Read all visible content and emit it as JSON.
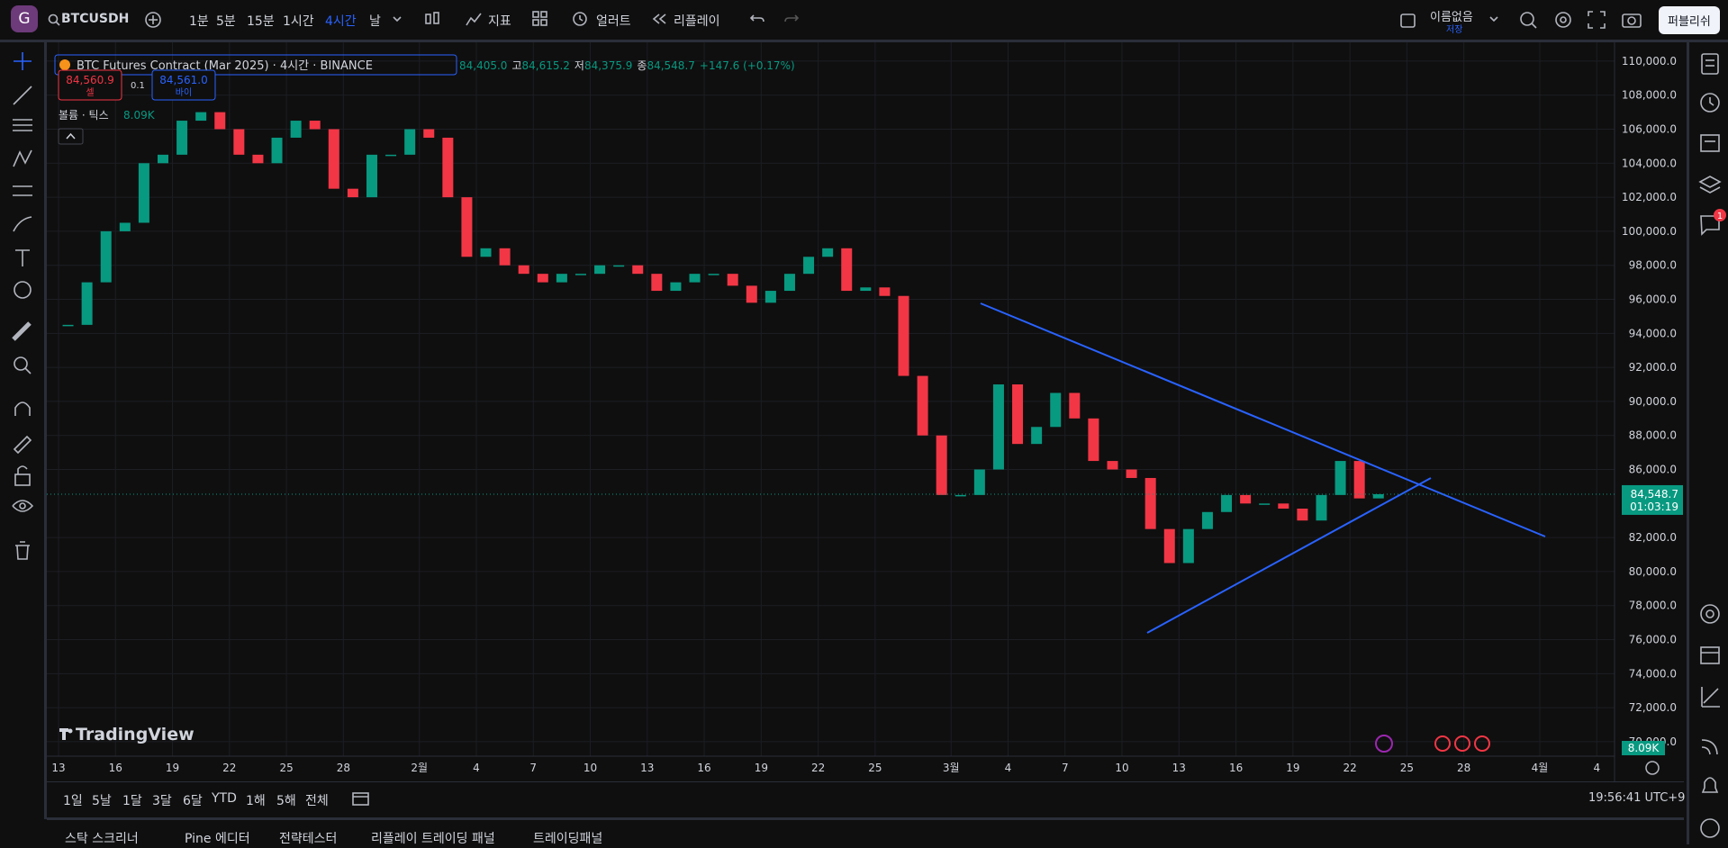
{
  "toolbar": {
    "avatar": "G",
    "symbol": "BTCUSDH",
    "intervals": [
      "1분",
      "5분",
      "15분",
      "1시간",
      "4시간",
      "날"
    ],
    "indicators": "지표",
    "alert": "얼러트",
    "replay": "리플레이",
    "layout_name": "이름없음",
    "save": "저장",
    "publish": "퍼블리쉬"
  },
  "legend": {
    "title": "BTC Futures Contract (Mar 2025) · 4시간 · BINANCE",
    "open": "84,405.0",
    "ohlc": [
      {
        "label": "고",
        "value": "84,615.2"
      },
      {
        "label": "저",
        "value": "84,375.9"
      },
      {
        "label": "종",
        "value": "84,548.7"
      }
    ],
    "change": "+147.6 (+0.17%)",
    "sell_price": "84,560.9",
    "sell": "셀",
    "spread": "0.1",
    "buy_price": "84,561.0",
    "buy": "바이",
    "volume_title": "볼륨 · 틱스",
    "volume_value": "8.09K"
  },
  "chart_data": {
    "type": "candlestick",
    "closes": [
      94500,
      97000,
      100000,
      100500,
      104000,
      104500,
      106500,
      107000,
      106000,
      104500,
      104000,
      105500,
      106500,
      106000,
      102500,
      102000,
      104500,
      104500,
      106000,
      105500,
      102000,
      98500,
      99000,
      98000,
      97500,
      97000,
      97500,
      97500,
      98000,
      98000,
      97500,
      96500,
      97000,
      97500,
      97500,
      96800,
      95800,
      96500,
      97500,
      98500,
      99000,
      96500,
      96700,
      96200,
      91500,
      88000,
      84500,
      84500,
      86000,
      91000,
      87500,
      88500,
      90500,
      89000,
      86500,
      86000,
      85500,
      82500,
      80500,
      82500,
      83500,
      84500,
      84000,
      84000,
      83700,
      83000,
      84500,
      86500,
      84300,
      84548.7
    ],
    "up_color": "#089981",
    "down_color": "#f23645",
    "x_labels": [
      "13",
      "16",
      "19",
      "22",
      "25",
      "28",
      "2월",
      "4",
      "7",
      "10",
      "13",
      "16",
      "19",
      "22",
      "25",
      "3월",
      "4",
      "7",
      "10",
      "13",
      "16",
      "19",
      "22",
      "25",
      "28",
      "4월",
      "4"
    ],
    "ylim": [
      69150,
      111000
    ],
    "yticks": [
      {
        "value": 110000,
        "label": "110,000.0"
      },
      {
        "value": 108000,
        "label": "108,000.0"
      },
      {
        "value": 106000,
        "label": "106,000.0"
      },
      {
        "value": 104000,
        "label": "104,000.0"
      },
      {
        "value": 102000,
        "label": "102,000.0"
      },
      {
        "value": 100000,
        "label": "100,000.0"
      },
      {
        "value": 98000,
        "label": "98,000.0"
      },
      {
        "value": 96000,
        "label": "96,000.0"
      },
      {
        "value": 94000,
        "label": "94,000.0"
      },
      {
        "value": 92000,
        "label": "92,000.0"
      },
      {
        "value": 90000,
        "label": "90,000.0"
      },
      {
        "value": 88000,
        "label": "88,000.0"
      },
      {
        "value": 86000,
        "label": "86,000.0"
      },
      {
        "value": 82000,
        "label": "82,000.0"
      },
      {
        "value": 80000,
        "label": "80,000.0"
      },
      {
        "value": 78000,
        "label": "78,000.0"
      },
      {
        "value": 76000,
        "label": "76,000.0"
      },
      {
        "value": 74000,
        "label": "74,000.0"
      },
      {
        "value": 72000,
        "label": "72,000.0"
      },
      {
        "value": 70000,
        "label": "70,000.0"
      }
    ],
    "grid": true,
    "last_price": {
      "value": 84548.7,
      "label": "84,548.7"
    },
    "countdown": "01:03:19",
    "volume_badge": "8.09K",
    "watermark": "TradingView"
  },
  "bottom_bar": {
    "ranges": [
      "1일",
      "5날",
      "1달",
      "3달",
      "6달",
      "YTD",
      "1해",
      "5해",
      "전체"
    ],
    "clock": "19:56:41 UTC+9"
  },
  "panel_tabs": [
    "스탁 스크리너",
    "Pine 에디터",
    "전략테스터",
    "리플레이 트레이딩 패널",
    "트레이딩패널"
  ],
  "right_toolbar": {
    "badge": "1"
  }
}
